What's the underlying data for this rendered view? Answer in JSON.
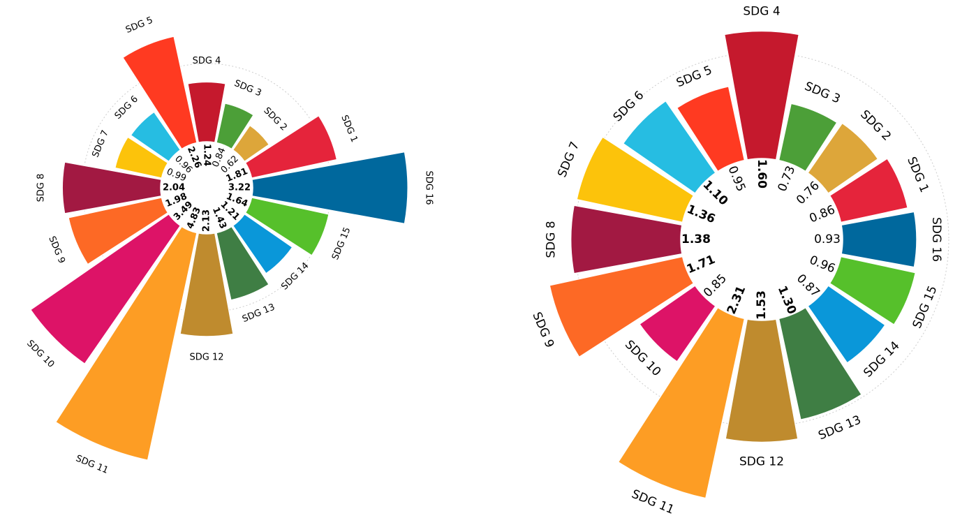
{
  "colors": {
    "SDG 1": "#e5243b",
    "SDG 2": "#dda63a",
    "SDG 3": "#4c9f38",
    "SDG 4": "#c5192d",
    "SDG 5": "#ff3a21",
    "SDG 6": "#26bde2",
    "SDG 7": "#fcc30b",
    "SDG 8": "#a21942",
    "SDG 9": "#fd6925",
    "SDG 10": "#dd1367",
    "SDG 11": "#fd9d24",
    "SDG 12": "#bf8b2e",
    "SDG 13": "#3f7e44",
    "SDG 14": "#0a97d9",
    "SDG 15": "#56c02b",
    "SDG 16": "#00689d"
  },
  "chart_data": [
    {
      "type": "polar-bar",
      "categories": [
        "SDG 1",
        "SDG 2",
        "SDG 3",
        "SDG 4",
        "SDG 5",
        "SDG 6",
        "SDG 7",
        "SDG 8",
        "SDG 9",
        "SDG 10",
        "SDG 11",
        "SDG 12",
        "SDG 13",
        "SDG 14",
        "SDG 15",
        "SDG 16"
      ],
      "values": [
        1.81,
        0.62,
        0.84,
        1.24,
        2.26,
        0.96,
        0.99,
        2.04,
        1.98,
        3.49,
        4.83,
        2.13,
        1.43,
        1.21,
        1.64,
        3.22
      ],
      "value_labels": [
        "1.81",
        "0.62",
        "0.84",
        "1.24",
        "2.26",
        "0.96",
        "0.99",
        "2.04",
        "1.98",
        "3.49",
        "4.83",
        "2.13",
        "1.43",
        "1.21",
        "1.64",
        "3.22"
      ],
      "bold_labels": [
        true,
        false,
        false,
        true,
        true,
        false,
        false,
        true,
        true,
        true,
        true,
        true,
        true,
        true,
        true,
        true
      ],
      "grid_circle": true
    },
    {
      "type": "polar-bar",
      "categories": [
        "SDG 1",
        "SDG 2",
        "SDG 3",
        "SDG 4",
        "SDG 5",
        "SDG 6",
        "SDG 7",
        "SDG 8",
        "SDG 9",
        "SDG 10",
        "SDG 11",
        "SDG 12",
        "SDG 13",
        "SDG 14",
        "SDG 15",
        "SDG 16"
      ],
      "values": [
        0.86,
        0.76,
        0.73,
        1.6,
        0.95,
        1.1,
        1.36,
        1.38,
        1.71,
        0.85,
        2.31,
        1.53,
        1.3,
        0.87,
        0.96,
        0.93
      ],
      "value_labels": [
        "0.86",
        "0.76",
        "0.73",
        "1.60",
        "0.95",
        "1.10",
        "1.36",
        "1.38",
        "1.71",
        "0.85",
        "2.31",
        "1.53",
        "1.30",
        "0.87",
        "0.96",
        "0.93"
      ],
      "bold_labels": [
        false,
        false,
        false,
        true,
        false,
        true,
        true,
        true,
        true,
        false,
        true,
        true,
        true,
        false,
        false,
        false
      ],
      "grid_circle": true
    }
  ]
}
